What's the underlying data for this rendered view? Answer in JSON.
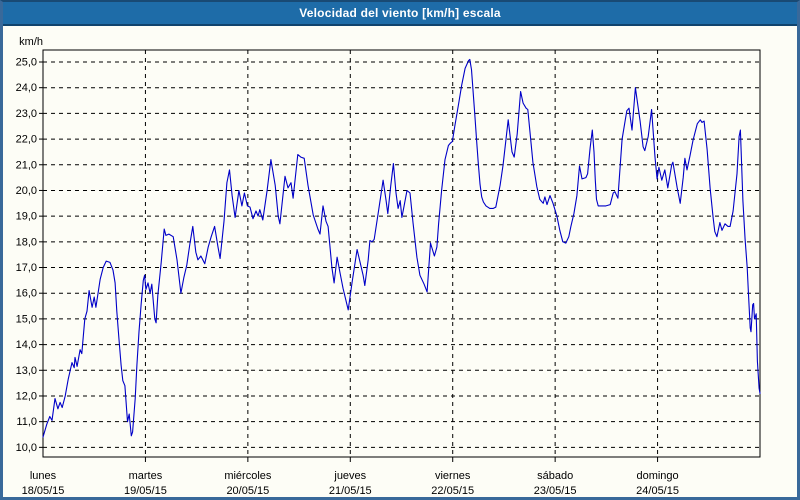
{
  "window": {
    "title": "Velocidad del viento [km/h] escala"
  },
  "colors": {
    "titlebar": "#1e6ca8",
    "titlebar_edge": "#10436d",
    "frame_border": "#39699a",
    "frame_top": "#194a74",
    "background": "#fdfdf6",
    "line": "#0000c8",
    "grid": "#000000"
  },
  "chart_data": {
    "type": "line",
    "title": "Velocidad del viento [km/h] escala",
    "ylabel": "km/h",
    "ylim": [
      10,
      25
    ],
    "y_tick_step": 1,
    "y_tick_labels": [
      "25,0",
      "24,0",
      "23,0",
      "22,0",
      "21,0",
      "20,0",
      "19,0",
      "18,0",
      "17,0",
      "16,0",
      "15,0",
      "14,0",
      "13,0",
      "12,0",
      "11,0",
      "10,0"
    ],
    "grid": "dashed",
    "x_axis": {
      "unit": "hours",
      "range_hours": [
        0,
        168
      ],
      "days": [
        {
          "name": "lunes",
          "date": "18/05/15"
        },
        {
          "name": "martes",
          "date": "19/05/15"
        },
        {
          "name": "miércoles",
          "date": "20/05/15"
        },
        {
          "name": "jueves",
          "date": "21/05/15"
        },
        {
          "name": "viernes",
          "date": "22/05/15"
        },
        {
          "name": "sábado",
          "date": "23/05/15"
        },
        {
          "name": "domingo",
          "date": "24/05/15"
        }
      ]
    },
    "series": [
      {
        "name": "Velocidad del viento",
        "unit": "km/h",
        "points": [
          [
            0,
            10.4
          ],
          [
            0.9,
            10.9
          ],
          [
            1.6,
            11.2
          ],
          [
            2.1,
            11.05
          ],
          [
            2.8,
            11.9
          ],
          [
            3.5,
            11.5
          ],
          [
            4,
            11.75
          ],
          [
            4.5,
            11.55
          ],
          [
            5.2,
            12
          ],
          [
            5.9,
            12.65
          ],
          [
            6.8,
            13.3
          ],
          [
            7.3,
            13.1
          ],
          [
            7.5,
            13.5
          ],
          [
            8,
            13.15
          ],
          [
            8.7,
            13.8
          ],
          [
            9.1,
            13.65
          ],
          [
            9.8,
            15
          ],
          [
            10.3,
            15.3
          ],
          [
            10.8,
            16.1
          ],
          [
            11.5,
            15.45
          ],
          [
            12,
            15.85
          ],
          [
            12.4,
            15.45
          ],
          [
            13.4,
            16.55
          ],
          [
            14.1,
            17
          ],
          [
            14.8,
            17.25
          ],
          [
            15.7,
            17.2
          ],
          [
            16.4,
            16.9
          ],
          [
            16.9,
            16.4
          ],
          [
            17.3,
            15.3
          ],
          [
            17.8,
            14.2
          ],
          [
            18.3,
            13.2
          ],
          [
            18.7,
            12.6
          ],
          [
            19.2,
            12.4
          ],
          [
            19.8,
            11
          ],
          [
            20.2,
            11.3
          ],
          [
            20.7,
            10.45
          ],
          [
            21,
            10.6
          ],
          [
            21.6,
            11.9
          ],
          [
            22,
            13.2
          ],
          [
            22.5,
            14.5
          ],
          [
            23,
            15.6
          ],
          [
            23.5,
            16.5
          ],
          [
            23.8,
            16.7
          ],
          [
            24.1,
            16.15
          ],
          [
            24.6,
            16.4
          ],
          [
            25.1,
            16
          ],
          [
            25.5,
            16.35
          ],
          [
            26.2,
            15
          ],
          [
            26.5,
            14.85
          ],
          [
            26.9,
            15.9
          ],
          [
            27.7,
            17.2
          ],
          [
            28.4,
            18.5
          ],
          [
            28.8,
            18.25
          ],
          [
            29.5,
            18.3
          ],
          [
            30.5,
            18.2
          ],
          [
            31.4,
            17.3
          ],
          [
            32.3,
            16
          ],
          [
            33,
            16.6
          ],
          [
            33.7,
            17.1
          ],
          [
            34.4,
            17.9
          ],
          [
            35.1,
            18.6
          ],
          [
            35.8,
            17.6
          ],
          [
            36.3,
            17.3
          ],
          [
            37,
            17.45
          ],
          [
            37.9,
            17.15
          ],
          [
            38.7,
            17.8
          ],
          [
            39.4,
            18.2
          ],
          [
            40.2,
            18.6
          ],
          [
            41,
            17.8
          ],
          [
            41.5,
            17.35
          ],
          [
            42.4,
            18.8
          ],
          [
            43.1,
            20.3
          ],
          [
            43.7,
            20.8
          ],
          [
            44.3,
            19.8
          ],
          [
            45,
            18.95
          ],
          [
            45.9,
            20
          ],
          [
            46.6,
            19.4
          ],
          [
            47.2,
            19.9
          ],
          [
            47.9,
            19.4
          ],
          [
            48.5,
            19.35
          ],
          [
            49.2,
            18.9
          ],
          [
            49.9,
            19.2
          ],
          [
            50.4,
            19
          ],
          [
            50.8,
            19.25
          ],
          [
            51.5,
            18.85
          ],
          [
            52.5,
            20
          ],
          [
            53.4,
            21.2
          ],
          [
            54.4,
            20.2
          ],
          [
            55.1,
            19
          ],
          [
            55.5,
            18.7
          ],
          [
            56.7,
            20.55
          ],
          [
            57.4,
            20.1
          ],
          [
            58.1,
            20.3
          ],
          [
            58.6,
            19.7
          ],
          [
            59.7,
            21.4
          ],
          [
            60.4,
            21.3
          ],
          [
            61.2,
            21.25
          ],
          [
            62.1,
            20.2
          ],
          [
            63.3,
            19.05
          ],
          [
            64.4,
            18.5
          ],
          [
            64.9,
            18.3
          ],
          [
            65.6,
            19.4
          ],
          [
            66.3,
            18.8
          ],
          [
            66.8,
            18.6
          ],
          [
            67.7,
            17
          ],
          [
            68.2,
            16.4
          ],
          [
            68.9,
            17.4
          ],
          [
            69.6,
            16.8
          ],
          [
            70.3,
            16.2
          ],
          [
            71.5,
            15.35
          ],
          [
            72.4,
            16.4
          ],
          [
            73.6,
            17.7
          ],
          [
            74.3,
            17.2
          ],
          [
            75,
            16.7
          ],
          [
            75.4,
            16.3
          ],
          [
            76.2,
            17.3
          ],
          [
            76.6,
            18.05
          ],
          [
            77.1,
            18
          ],
          [
            77.6,
            18.1
          ],
          [
            78.7,
            19.3
          ],
          [
            79.7,
            20.4
          ],
          [
            80.4,
            19.6
          ],
          [
            80.8,
            19.1
          ],
          [
            81.5,
            20.2
          ],
          [
            82.1,
            21.05
          ],
          [
            82.7,
            19.9
          ],
          [
            83.2,
            19.3
          ],
          [
            83.7,
            19.6
          ],
          [
            84.1,
            18.95
          ],
          [
            84.6,
            19.4
          ],
          [
            85.3,
            20
          ],
          [
            86,
            19.9
          ],
          [
            86.7,
            18.75
          ],
          [
            87.6,
            17.4
          ],
          [
            88.3,
            16.7
          ],
          [
            89.3,
            16.35
          ],
          [
            90,
            16.05
          ],
          [
            90.8,
            17.95
          ],
          [
            91.7,
            17.45
          ],
          [
            92.3,
            17.8
          ],
          [
            92.7,
            18.7
          ],
          [
            93.4,
            20
          ],
          [
            94.2,
            21.2
          ],
          [
            95,
            21.75
          ],
          [
            95.5,
            21.85
          ],
          [
            95.9,
            21.9
          ],
          [
            96.5,
            22.5
          ],
          [
            97.3,
            23.3
          ],
          [
            98.1,
            24.1
          ],
          [
            98.9,
            24.75
          ],
          [
            99.7,
            25.05
          ],
          [
            100,
            25.1
          ],
          [
            100.4,
            24.7
          ],
          [
            100.8,
            23.8
          ],
          [
            101.2,
            22.9
          ],
          [
            101.6,
            21.95
          ],
          [
            102,
            21.05
          ],
          [
            102.4,
            20.25
          ],
          [
            102.8,
            19.75
          ],
          [
            103.2,
            19.55
          ],
          [
            103.8,
            19.4
          ],
          [
            104.7,
            19.3
          ],
          [
            105.5,
            19.3
          ],
          [
            106.1,
            19.35
          ],
          [
            107.1,
            20.2
          ],
          [
            107.8,
            21
          ],
          [
            109,
            22.75
          ],
          [
            109.9,
            21.5
          ],
          [
            110.4,
            21.3
          ],
          [
            111.1,
            22.2
          ],
          [
            111.9,
            23.85
          ],
          [
            112.5,
            23.4
          ],
          [
            113.2,
            23.2
          ],
          [
            113.6,
            23.15
          ],
          [
            114.8,
            21.1
          ],
          [
            115.7,
            20.15
          ],
          [
            116.4,
            19.65
          ],
          [
            117.2,
            19.5
          ],
          [
            117.6,
            19.75
          ],
          [
            118.1,
            19.45
          ],
          [
            118.8,
            19.8
          ],
          [
            119.5,
            19.5
          ],
          [
            120.4,
            19
          ],
          [
            121.1,
            18.45
          ],
          [
            121.8,
            18
          ],
          [
            122.5,
            17.95
          ],
          [
            123.2,
            18.2
          ],
          [
            123.7,
            18.6
          ],
          [
            124.4,
            19.1
          ],
          [
            125.1,
            19.8
          ],
          [
            125.7,
            20.95
          ],
          [
            126.3,
            20.45
          ],
          [
            127.2,
            20.5
          ],
          [
            127.6,
            20.65
          ],
          [
            128.2,
            21.65
          ],
          [
            128.7,
            22.35
          ],
          [
            129.1,
            21.5
          ],
          [
            129.4,
            20.4
          ],
          [
            129.7,
            19.65
          ],
          [
            130.1,
            19.4
          ],
          [
            131,
            19.4
          ],
          [
            131.9,
            19.4
          ],
          [
            132.9,
            19.45
          ],
          [
            133.6,
            19.9
          ],
          [
            134,
            19.95
          ],
          [
            134.7,
            19.7
          ],
          [
            135.7,
            22
          ],
          [
            136.8,
            23.1
          ],
          [
            137.3,
            23.2
          ],
          [
            138,
            22.35
          ],
          [
            138.8,
            24
          ],
          [
            139.4,
            23.3
          ],
          [
            139.9,
            22.7
          ],
          [
            140.6,
            21.7
          ],
          [
            141,
            21.55
          ],
          [
            141.8,
            22.1
          ],
          [
            142.6,
            23.15
          ],
          [
            143.4,
            21.3
          ],
          [
            143.9,
            20.45
          ],
          [
            144.3,
            20.9
          ],
          [
            145,
            20.4
          ],
          [
            145.7,
            20.8
          ],
          [
            146.4,
            20.1
          ],
          [
            147.3,
            21
          ],
          [
            147.6,
            21.1
          ],
          [
            148.6,
            20.1
          ],
          [
            149.3,
            19.5
          ],
          [
            150,
            20.5
          ],
          [
            150.4,
            21.25
          ],
          [
            150.9,
            20.8
          ],
          [
            151.6,
            21.35
          ],
          [
            152.3,
            21.95
          ],
          [
            153.3,
            22.6
          ],
          [
            154,
            22.75
          ],
          [
            154.4,
            22.65
          ],
          [
            154.9,
            22.7
          ],
          [
            155.6,
            21.6
          ],
          [
            156.3,
            20.1
          ],
          [
            157,
            18.95
          ],
          [
            157.4,
            18.4
          ],
          [
            157.9,
            18.2
          ],
          [
            158.6,
            18.75
          ],
          [
            159.1,
            18.45
          ],
          [
            159.8,
            18.7
          ],
          [
            160.5,
            18.6
          ],
          [
            161,
            18.6
          ],
          [
            161.7,
            19.2
          ],
          [
            162.6,
            20.65
          ],
          [
            163.1,
            22.1
          ],
          [
            163.4,
            22.35
          ],
          [
            164,
            19.6
          ],
          [
            164.5,
            18.1
          ],
          [
            165,
            17
          ],
          [
            165.3,
            15.95
          ],
          [
            165.7,
            14.65
          ],
          [
            165.9,
            14.5
          ],
          [
            166.3,
            15.55
          ],
          [
            166.5,
            15.6
          ],
          [
            166.7,
            15
          ],
          [
            167.1,
            15.2
          ],
          [
            167.4,
            13.35
          ],
          [
            167.8,
            12.3
          ],
          [
            168,
            12.1
          ]
        ]
      }
    ]
  }
}
